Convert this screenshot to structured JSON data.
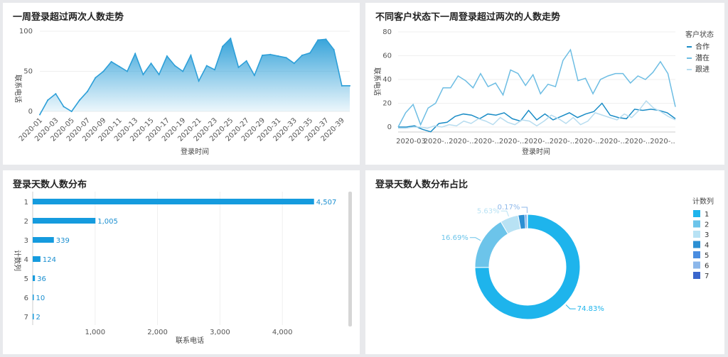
{
  "chart_data": [
    {
      "type": "area",
      "title": "一周登录超过两次人数走势",
      "xlabel": "登录时间",
      "ylabel": "联系电话",
      "ylim": [
        0,
        100
      ],
      "y_ticks": [
        "0",
        "50",
        "100"
      ],
      "x": [
        "2020-01",
        "2020-02",
        "2020-03",
        "2020-04",
        "2020-05",
        "2020-06",
        "2020-07",
        "2020-08",
        "2020-09",
        "2020-10",
        "2020-11",
        "2020-12",
        "2020-13",
        "2020-14",
        "2020-15",
        "2020-16",
        "2020-17",
        "2020-18",
        "2020-19",
        "2020-20",
        "2020-21",
        "2020-22",
        "2020-23",
        "2020-24",
        "2020-25",
        "2020-26",
        "2020-27",
        "2020-28",
        "2020-29",
        "2020-30",
        "2020-31",
        "2020-32",
        "2020-33",
        "2020-34",
        "2020-35",
        "2020-36",
        "2020-37",
        "2020-38",
        "2020-39",
        "2020-40"
      ],
      "x_tick_labels": [
        "2020-01",
        "2020-03",
        "2020-05",
        "2020-07",
        "2020-09",
        "2020-11",
        "2020-13",
        "2020-15",
        "2020-17",
        "2020-19",
        "2020-21",
        "2020-23",
        "2020-25",
        "2020-27",
        "2020-29",
        "2020-31",
        "2020-33",
        "2020-35",
        "2020-37",
        "2020-39"
      ],
      "values": [
        -4,
        14,
        22,
        6,
        0,
        14,
        25,
        42,
        50,
        62,
        56,
        50,
        72,
        46,
        60,
        46,
        69,
        57,
        50,
        70,
        38,
        57,
        52,
        81,
        91,
        55,
        63,
        45,
        70,
        71,
        69,
        67,
        60,
        70,
        73,
        89,
        90,
        77,
        32,
        32
      ],
      "color": "#2d9fd8"
    },
    {
      "type": "line",
      "title": "不同客户状态下一周登录超过两次的人数走势",
      "xlabel": "登录时间",
      "ylabel": "联系电话",
      "ylim": [
        0,
        80
      ],
      "y_ticks": [
        "0",
        "20",
        "40",
        "60",
        "80"
      ],
      "x_tick_labels": [
        "2020-03",
        "2020-..",
        "2020-..",
        "2020-..",
        "2020-..",
        "2020-..",
        "2020-..",
        "2020-..",
        "2020-..",
        "2020-..",
        "2020-.."
      ],
      "legend_title": "客户状态",
      "legend_position": "right",
      "series": [
        {
          "name": "合作",
          "color": "#1a8cc6",
          "values": [
            0,
            0,
            1,
            -2,
            -4,
            3,
            4,
            9,
            11,
            10,
            7,
            11,
            10,
            12,
            7,
            5,
            14,
            6,
            11,
            6,
            9,
            12,
            8,
            11,
            13,
            20,
            10,
            8,
            7,
            15,
            14,
            15,
            14,
            12,
            7
          ]
        },
        {
          "name": "潜在",
          "color": "#6dbde3",
          "values": [
            0,
            12,
            19,
            2,
            16,
            20,
            33,
            33,
            43,
            39,
            33,
            45,
            34,
            37,
            27,
            48,
            45,
            35,
            44,
            28,
            36,
            34,
            56,
            65,
            39,
            41,
            28,
            40,
            43,
            45,
            45,
            37,
            43,
            40,
            46,
            55,
            45,
            17
          ]
        },
        {
          "name": "跟进",
          "color": "#b7dcef",
          "values": [
            -1,
            -1,
            0,
            0,
            -1,
            1,
            0,
            2,
            1,
            5,
            3,
            7,
            5,
            2,
            8,
            4,
            2,
            6,
            5,
            1,
            5,
            10,
            7,
            3,
            8,
            2,
            5,
            12,
            10,
            8,
            6,
            11,
            8,
            14,
            22,
            16,
            13,
            9,
            6
          ]
        }
      ]
    },
    {
      "type": "bar",
      "orientation": "horizontal",
      "title": "登录天数人数分布",
      "xlabel": "联系电话",
      "ylabel": "计数列",
      "xlim": [
        0,
        5000
      ],
      "x_ticks": [
        "1,000",
        "2,000",
        "3,000",
        "4,000"
      ],
      "categories": [
        "1",
        "2",
        "3",
        "4",
        "5",
        "6",
        "7"
      ],
      "values": [
        4507,
        1005,
        339,
        124,
        36,
        10,
        2
      ],
      "data_labels": [
        "4,507",
        "1,005",
        "339",
        "124",
        "36",
        "10",
        "2"
      ],
      "color": "#159bde"
    },
    {
      "type": "pie",
      "variant": "donut",
      "title": "登录天数人数分布占比",
      "legend_title": "计数列",
      "legend_position": "right",
      "categories": [
        "1",
        "2",
        "3",
        "4",
        "5",
        "6",
        "7"
      ],
      "values": [
        74.83,
        16.69,
        5.63,
        2.06,
        0.6,
        0.17,
        0.03
      ],
      "labels": [
        "74.83%",
        "16.69%",
        "5.63%",
        "",
        "",
        "0.17%",
        ""
      ],
      "colors": [
        "#1eb4ec",
        "#6cc4ea",
        "#b8e2f4",
        "#2b8fd3",
        "#4a8de0",
        "#8cb7ea",
        "#3a66cc"
      ]
    }
  ]
}
